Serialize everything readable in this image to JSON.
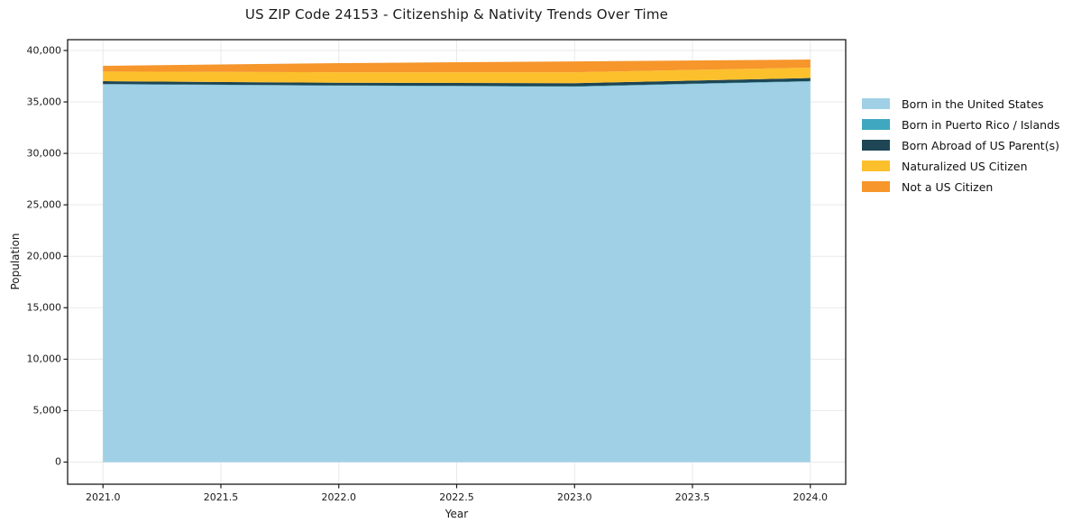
{
  "chart_data": {
    "type": "area",
    "stacked": true,
    "title": "US ZIP Code 24153 - Citizenship & Nativity Trends Over Time",
    "xlabel": "Year",
    "ylabel": "Population",
    "x": [
      2021,
      2022,
      2023,
      2024
    ],
    "series": [
      {
        "name": "Born in the United States",
        "color": "#9fd0e6",
        "values": [
          36700,
          36570,
          36480,
          36980
        ]
      },
      {
        "name": "Born in Puerto Rico / Islands",
        "color": "#3fa7c0",
        "values": [
          40,
          40,
          40,
          50
        ]
      },
      {
        "name": "Born Abroad of US Parent(s)",
        "color": "#1e4654",
        "values": [
          280,
          250,
          310,
          300
        ]
      },
      {
        "name": "Naturalized US Citizen",
        "color": "#fcc02d",
        "values": [
          940,
          1030,
          1060,
          1000
        ]
      },
      {
        "name": "Not a US Citizen",
        "color": "#f6962b",
        "values": [
          550,
          880,
          1050,
          790
        ]
      }
    ],
    "stack_totals": [
      38510,
      38770,
      38940,
      39120
    ],
    "xlim": [
      2020.85,
      2024.15
    ],
    "ylim": [
      -2150,
      41050
    ],
    "x_ticks": [
      2021.0,
      2021.5,
      2022.0,
      2022.5,
      2023.0,
      2023.5,
      2024.0
    ],
    "x_tick_labels": [
      "2021.0",
      "2021.5",
      "2022.0",
      "2022.5",
      "2023.0",
      "2023.5",
      "2024.0"
    ],
    "y_ticks": [
      0,
      5000,
      10000,
      15000,
      20000,
      25000,
      30000,
      35000,
      40000
    ],
    "y_tick_labels": [
      "0",
      "5,000",
      "10,000",
      "15,000",
      "20,000",
      "25,000",
      "30,000",
      "35,000",
      "40,000"
    ],
    "grid": true,
    "legend_position": "right"
  },
  "colors": {
    "background": "#ffffff",
    "grid": "#e9e9e9",
    "spine": "#1a1a1a",
    "text": "#111111"
  }
}
